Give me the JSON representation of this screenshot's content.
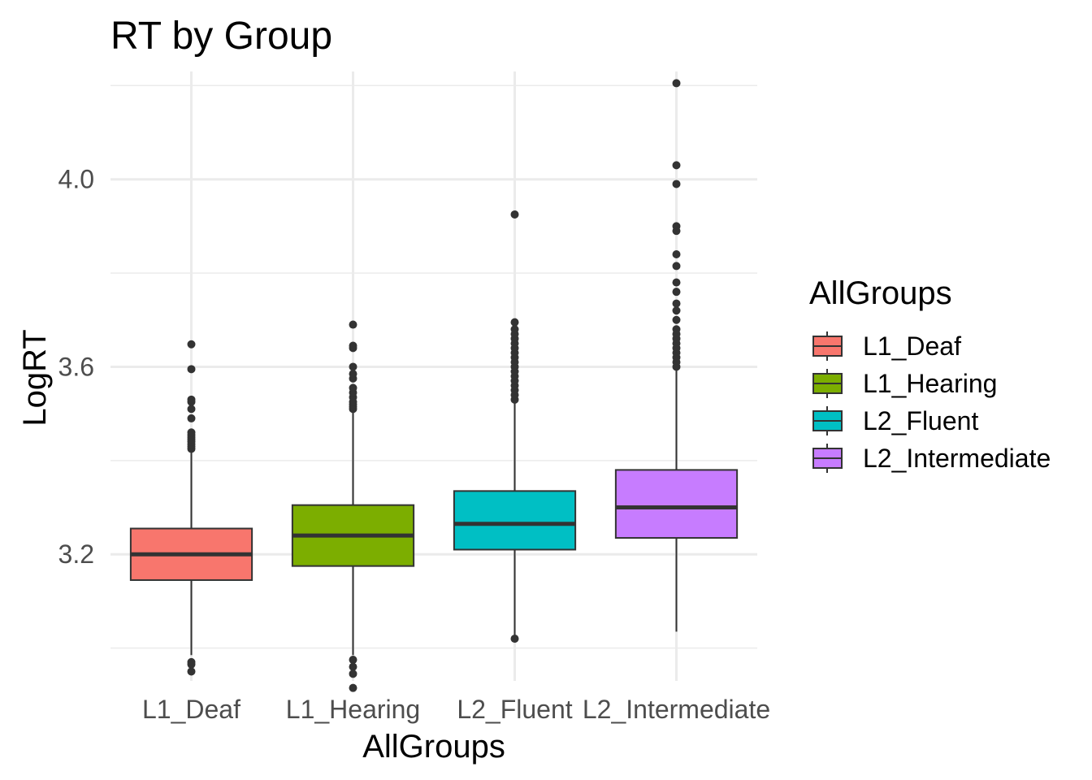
{
  "chart_data": {
    "type": "box",
    "title": "RT by Group",
    "xlabel": "AllGroups",
    "ylabel": "LogRT",
    "categories": [
      "L1_Deaf",
      "L1_Hearing",
      "L2_Fluent",
      "L2_Intermediate"
    ],
    "ylim": [
      2.93,
      4.23
    ],
    "yticks": [
      "3.2",
      "3.6",
      "4.0"
    ],
    "grid": true,
    "legend": {
      "title": "AllGroups",
      "position": "right",
      "entries": [
        "L1_Deaf",
        "L1_Hearing",
        "L2_Fluent",
        "L2_Intermediate"
      ]
    },
    "colors": [
      "#F8766D",
      "#7CAE00",
      "#00BFC4",
      "#C77CFF"
    ],
    "series": [
      {
        "category": "L1_Deaf",
        "q1": 3.145,
        "median": 3.2,
        "q3": 3.255,
        "whisker_low": 2.985,
        "whisker_high": 3.42,
        "outliers": [
          2.97,
          2.965,
          2.95,
          3.425,
          3.43,
          3.435,
          3.44,
          3.445,
          3.45,
          3.455,
          3.46,
          3.49,
          3.51,
          3.525,
          3.53,
          3.595,
          3.648
        ]
      },
      {
        "category": "L1_Hearing",
        "q1": 3.175,
        "median": 3.24,
        "q3": 3.305,
        "whisker_low": 2.985,
        "whisker_high": 3.505,
        "outliers": [
          2.975,
          2.96,
          2.945,
          2.915,
          3.51,
          3.515,
          3.52,
          3.525,
          3.535,
          3.545,
          3.555,
          3.575,
          3.585,
          3.6,
          3.64,
          3.645,
          3.69
        ]
      },
      {
        "category": "L2_Fluent",
        "q1": 3.21,
        "median": 3.265,
        "q3": 3.335,
        "whisker_low": 3.025,
        "whisker_high": 3.525,
        "outliers": [
          3.02,
          3.53,
          3.54,
          3.55,
          3.56,
          3.57,
          3.58,
          3.59,
          3.6,
          3.61,
          3.62,
          3.63,
          3.64,
          3.65,
          3.66,
          3.67,
          3.68,
          3.695,
          3.925
        ]
      },
      {
        "category": "L2_Intermediate",
        "q1": 3.235,
        "median": 3.3,
        "q3": 3.38,
        "whisker_low": 3.035,
        "whisker_high": 3.595,
        "outliers": [
          3.6,
          3.61,
          3.62,
          3.63,
          3.64,
          3.65,
          3.66,
          3.67,
          3.68,
          3.7,
          3.72,
          3.735,
          3.76,
          3.78,
          3.815,
          3.84,
          3.89,
          3.9,
          3.99,
          4.03,
          4.205
        ]
      }
    ]
  }
}
